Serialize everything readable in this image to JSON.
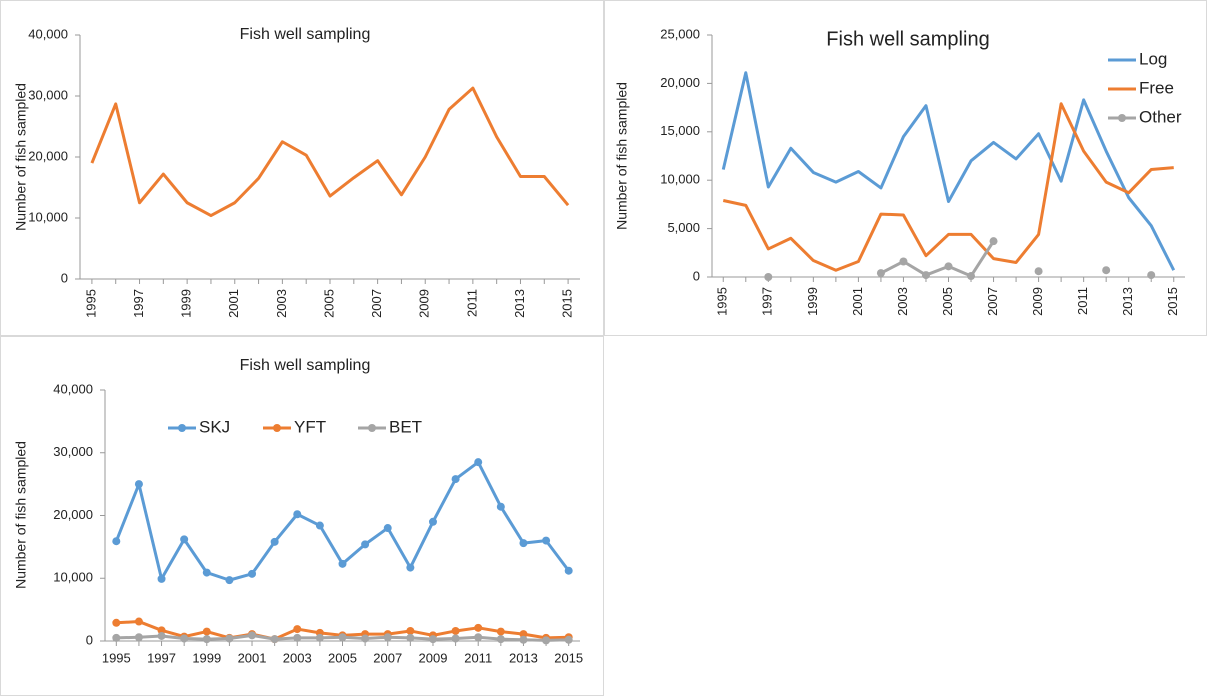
{
  "chart_data": [
    {
      "type": "line",
      "title": "Fish well sampling",
      "y_label": "Number of fish sampled",
      "x": [
        1995,
        1996,
        1997,
        1998,
        1999,
        2000,
        2001,
        2002,
        2003,
        2004,
        2005,
        2006,
        2007,
        2008,
        2009,
        2010,
        2011,
        2012,
        2013,
        2014,
        2015
      ],
      "xlim": [
        1994.5,
        2015.5
      ],
      "xticks": [
        1995,
        1997,
        1999,
        2001,
        2003,
        2005,
        2007,
        2009,
        2011,
        2013,
        2015
      ],
      "xtick_rotation": 90,
      "ylim": [
        0,
        40000
      ],
      "yticks": [
        0,
        {
          "value": 10000,
          "label": "10,000"
        },
        {
          "value": 20000,
          "label": "20,000"
        },
        {
          "value": 30000,
          "label": "30,000"
        },
        {
          "value": 40000,
          "label": "40,000"
        }
      ],
      "grid": false,
      "markers": false,
      "series": [
        {
          "color": "#ed7d31",
          "values": [
            19000,
            28700,
            12500,
            17200,
            12500,
            10400,
            12500,
            16500,
            22500,
            20300,
            13600,
            16600,
            19400,
            13800,
            20000,
            27800,
            31300,
            23300,
            16800,
            16800,
            12100
          ]
        }
      ]
    },
    {
      "type": "line",
      "title": "Fish well sampling",
      "y_label": "Number of fish sampled",
      "x": [
        1995,
        1996,
        1997,
        1998,
        1999,
        2000,
        2001,
        2002,
        2003,
        2004,
        2005,
        2006,
        2007,
        2008,
        2009,
        2010,
        2011,
        2012,
        2013,
        2014,
        2015
      ],
      "xlim": [
        1994.5,
        2015.5
      ],
      "xticks": [
        1995,
        1997,
        1999,
        2001,
        2003,
        2005,
        2007,
        2009,
        2011,
        2013,
        2015
      ],
      "xtick_rotation": 90,
      "ylim": [
        0,
        25000
      ],
      "yticks": [
        0,
        {
          "value": 5000,
          "label": "5,000"
        },
        {
          "value": 10000,
          "label": "10,000"
        },
        {
          "value": 15000,
          "label": "15,000"
        },
        {
          "value": 20000,
          "label": "20,000"
        },
        {
          "value": 25000,
          "label": "25,000"
        }
      ],
      "grid": false,
      "legend": "right",
      "series": [
        {
          "name": "Log",
          "color": "#5b9bd5",
          "markers": false,
          "values": [
            11100,
            21100,
            9300,
            13300,
            10800,
            9800,
            10900,
            9200,
            14500,
            17700,
            7800,
            12000,
            13900,
            12200,
            14800,
            9900,
            18300,
            13000,
            8200,
            5300,
            700
          ]
        },
        {
          "name": "Free",
          "color": "#ed7d31",
          "markers": false,
          "values": [
            7900,
            7400,
            2900,
            4000,
            1700,
            700,
            1600,
            6500,
            6400,
            2200,
            4400,
            4400,
            1900,
            1500,
            4400,
            17900,
            13000,
            9800,
            8700,
            11100,
            11300
          ]
        },
        {
          "name": "Other",
          "color": "#a5a5a5",
          "markers": true,
          "values": [
            null,
            null,
            0,
            null,
            null,
            null,
            null,
            400,
            1600,
            200,
            1100,
            100,
            3700,
            null,
            600,
            null,
            null,
            700,
            null,
            200,
            null
          ]
        }
      ]
    },
    {
      "type": "line",
      "title": "Fish well sampling",
      "y_label": "Number of fish sampled",
      "x": [
        1995,
        1996,
        1997,
        1998,
        1999,
        2000,
        2001,
        2002,
        2003,
        2004,
        2005,
        2006,
        2007,
        2008,
        2009,
        2010,
        2011,
        2012,
        2013,
        2014,
        2015
      ],
      "xlim": [
        1994.5,
        2015.5
      ],
      "xticks": [
        1995,
        1997,
        1999,
        2001,
        2003,
        2005,
        2007,
        2009,
        2011,
        2013,
        2015
      ],
      "xtick_rotation": 0,
      "ylim": [
        0,
        40000
      ],
      "yticks": [
        0,
        {
          "value": 10000,
          "label": "10,000"
        },
        {
          "value": 20000,
          "label": "20,000"
        },
        {
          "value": 30000,
          "label": "30,000"
        },
        {
          "value": 40000,
          "label": "40,000"
        }
      ],
      "grid": false,
      "legend": "top",
      "series": [
        {
          "name": "SKJ",
          "color": "#5b9bd5",
          "markers": true,
          "values": [
            15900,
            25000,
            9900,
            16200,
            10900,
            9700,
            10700,
            15800,
            20200,
            18400,
            12300,
            15400,
            18000,
            11700,
            19000,
            25800,
            28500,
            21400,
            15600,
            16000,
            11200
          ]
        },
        {
          "name": "YFT",
          "color": "#ed7d31",
          "markers": true,
          "values": [
            2900,
            3100,
            1700,
            700,
            1500,
            500,
            1100,
            300,
            1900,
            1300,
            900,
            1100,
            1100,
            1600,
            900,
            1600,
            2100,
            1500,
            1100,
            500,
            600
          ]
        },
        {
          "name": "BET",
          "color": "#a5a5a5",
          "markers": true,
          "values": [
            500,
            600,
            800,
            400,
            300,
            400,
            900,
            300,
            500,
            500,
            600,
            400,
            600,
            500,
            300,
            400,
            600,
            300,
            200,
            100,
            200
          ]
        }
      ]
    }
  ]
}
